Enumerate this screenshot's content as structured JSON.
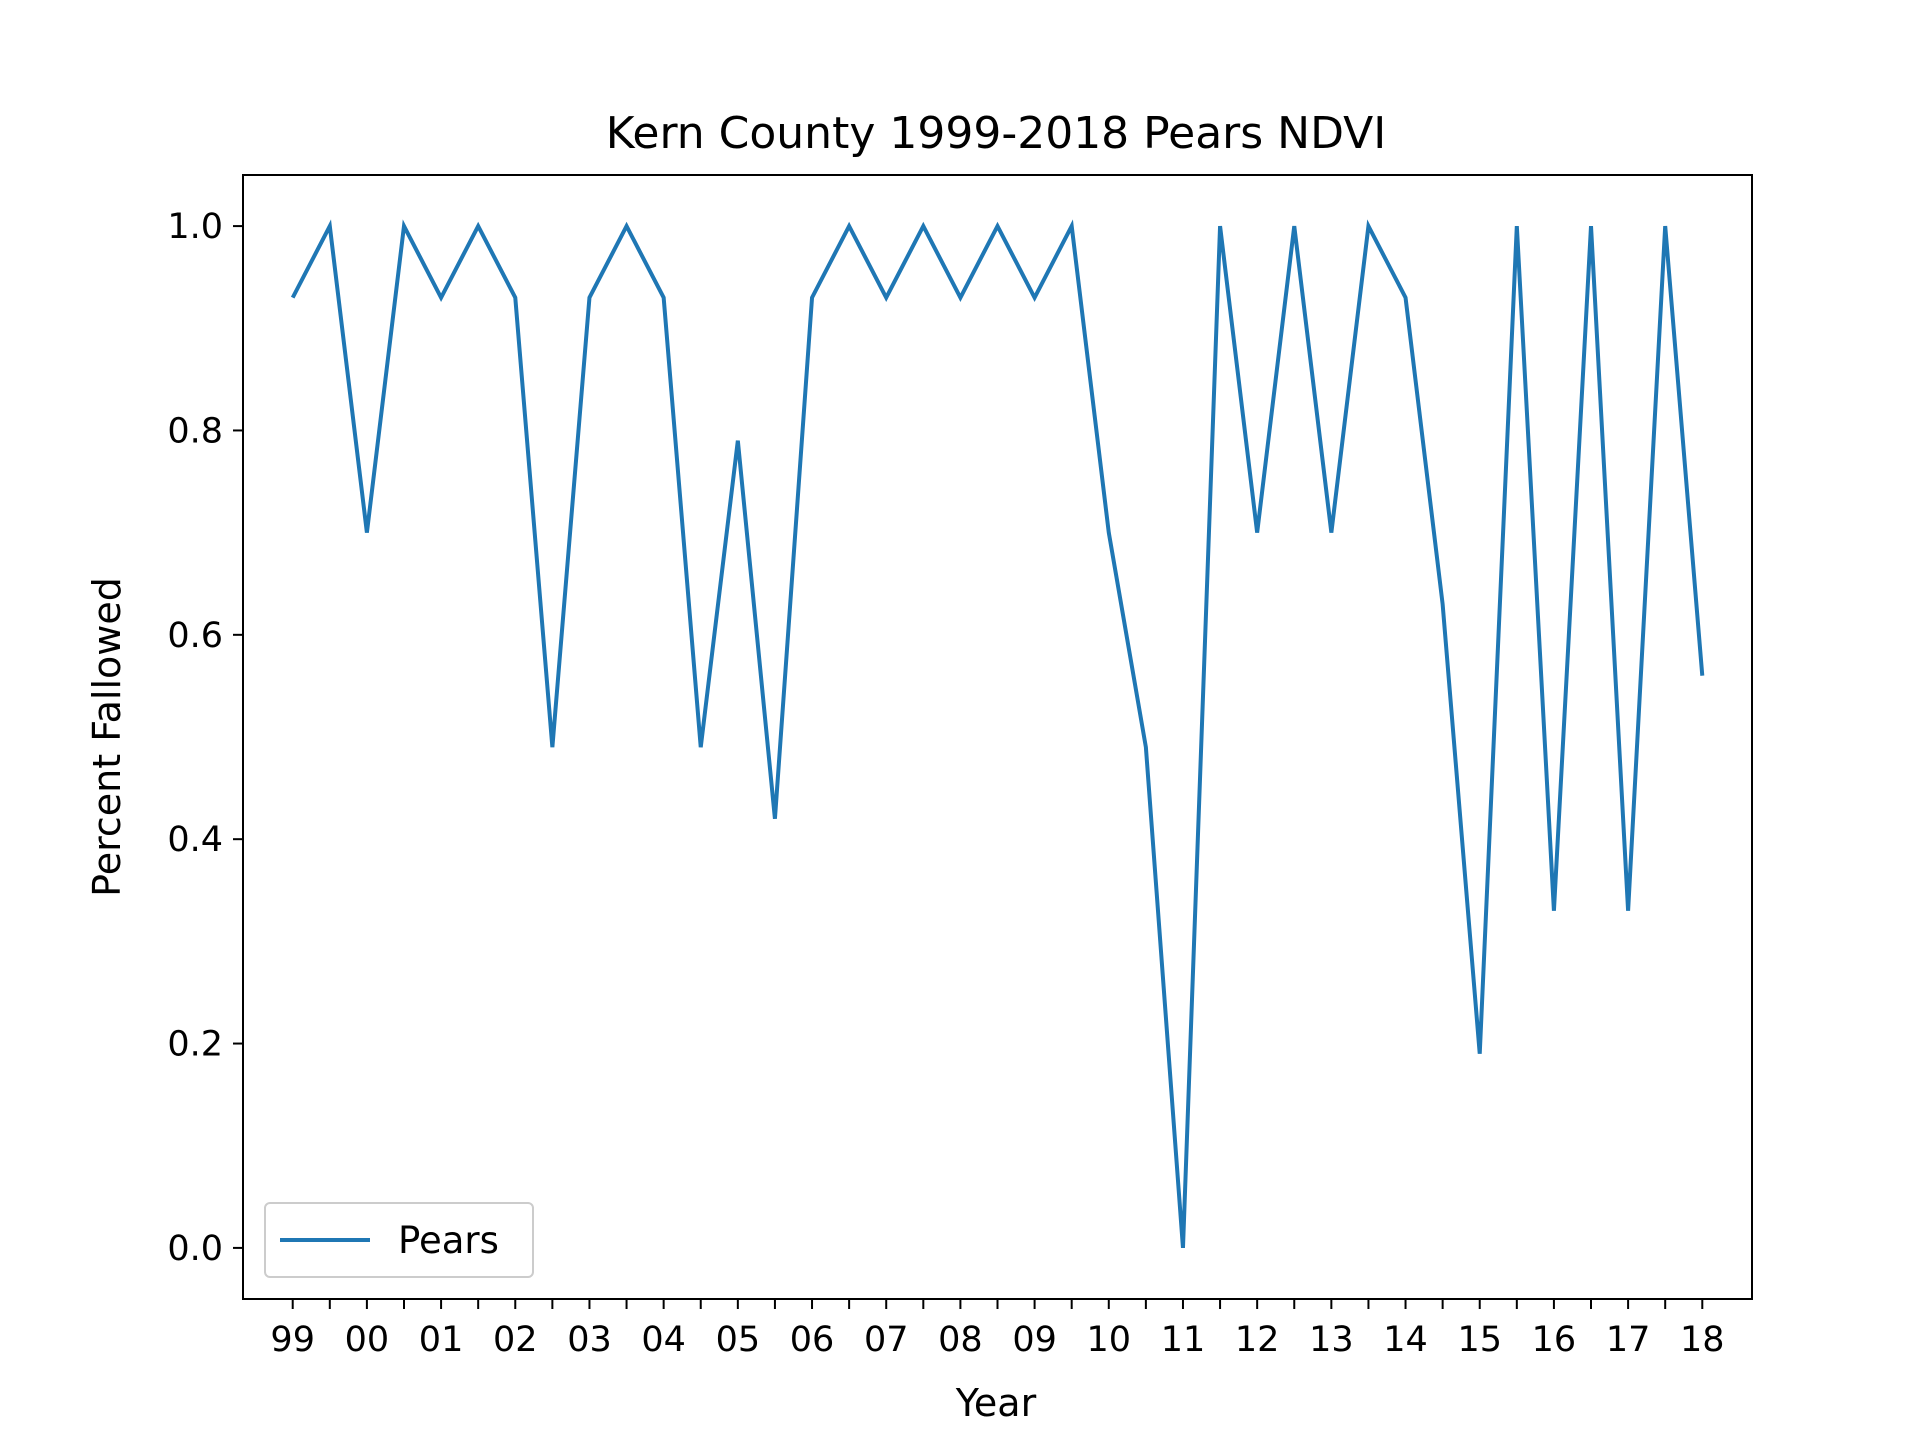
{
  "chart_data": {
    "type": "line",
    "title": "Kern County 1999-2018 Pears NDVI",
    "xlabel": "Year",
    "ylabel": "Percent Fallowed",
    "x_ticks": [
      "99",
      "00",
      "01",
      "02",
      "03",
      "04",
      "05",
      "06",
      "07",
      "08",
      "09",
      "10",
      "11",
      "12",
      "13",
      "14",
      "15",
      "16",
      "17",
      "18"
    ],
    "x": [
      1999,
      1999.5,
      2000,
      2000.5,
      2001,
      2001.5,
      2002,
      2002.5,
      2003,
      2003.5,
      2004,
      2004.5,
      2005,
      2005.5,
      2006,
      2006.5,
      2007,
      2007.5,
      2008,
      2008.5,
      2009,
      2009.5,
      2010,
      2010.5,
      2011,
      2011.5,
      2012,
      2012.5,
      2013,
      2013.5,
      2014,
      2014.5,
      2015,
      2015.5,
      2016,
      2016.5,
      2017,
      2017.5,
      2018
    ],
    "series": [
      {
        "name": "Pears",
        "color": "#1f77b4",
        "values": [
          0.93,
          1.0,
          0.7,
          1.0,
          0.93,
          1.0,
          0.93,
          0.49,
          0.93,
          1.0,
          0.93,
          0.49,
          0.79,
          0.42,
          0.93,
          1.0,
          0.93,
          1.0,
          0.93,
          1.0,
          0.93,
          1.0,
          0.7,
          0.49,
          0.0,
          1.0,
          0.7,
          1.0,
          0.7,
          1.0,
          0.93,
          0.63,
          0.19,
          1.0,
          0.33,
          1.0,
          0.33,
          1.0,
          0.56
        ]
      }
    ],
    "xlim": [
      1998.33,
      2018.67
    ],
    "ylim": [
      -0.05,
      1.05
    ],
    "y_ticks": [
      "0.0",
      "0.2",
      "0.4",
      "0.6",
      "0.8",
      "1.0"
    ],
    "grid": false,
    "legend_position": "lower-left"
  }
}
